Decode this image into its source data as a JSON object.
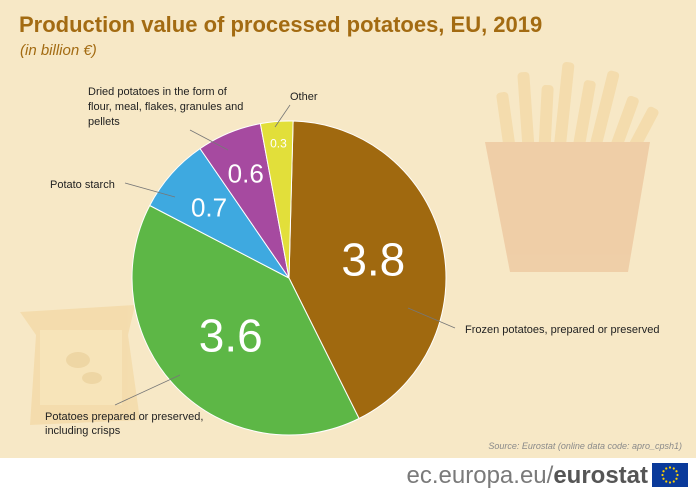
{
  "title": "Production value of processed potatoes, EU, 2019",
  "subtitle": "(in billion €)",
  "source": "Source: Eurostat (online data code: apro_cpsh1)",
  "footer": {
    "domain": "ec.europa.eu/",
    "brand": "eurostat"
  },
  "chart_data": {
    "type": "pie",
    "title": "Production value of processed potatoes, EU, 2019",
    "unit": "(in billion €)",
    "slices": [
      {
        "label": "Frozen potatoes, prepared or preserved",
        "value": 3.8,
        "display": "3.8",
        "color": "#a0690f"
      },
      {
        "label": "Potatoes prepared or preserved, including crisps",
        "value": 3.6,
        "display": "3.6",
        "color": "#5db746"
      },
      {
        "label": "Potato starch",
        "value": 0.7,
        "display": "0.7",
        "color": "#3ea9e0"
      },
      {
        "label": "Dried potatoes in the form of flour, meal, flakes, granules and pellets",
        "value": 0.6,
        "display": "0.6",
        "color": "#a64aa0"
      },
      {
        "label": "Other",
        "value": 0.3,
        "display": "0.3",
        "color": "#e2df3a"
      }
    ]
  },
  "colors": {
    "background": "#f7e8c6",
    "title": "#a36b12",
    "eu_flag": "#0a3a9a"
  }
}
